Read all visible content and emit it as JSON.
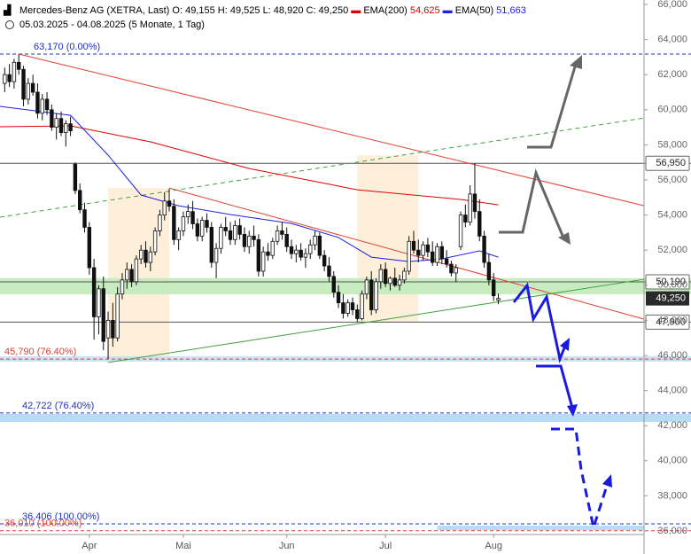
{
  "header": {
    "title": "Mercedes-Benz AG (XETRA, Last)",
    "open": "O: 49,155",
    "high": "H: 49,525",
    "low": "L: 48,920",
    "close": "C: 49,250",
    "ema200_name": "EMA(200)",
    "ema200_value": "54,625",
    "ema50_name": "EMA(50)",
    "ema50_value": "51,663",
    "range": "05.03.2025 - 04.08.2025",
    "period": "(5 Monate, 1 Tag)"
  },
  "chart_data": {
    "type": "candlestick",
    "xlim": [
      -1,
      136
    ],
    "ylim": [
      36000,
      66000
    ],
    "xticks": [
      {
        "value": 18,
        "label": "Apr"
      },
      {
        "value": 38,
        "label": "Mai"
      },
      {
        "value": 60,
        "label": "Jun"
      },
      {
        "value": 81,
        "label": "Jul"
      },
      {
        "value": 104,
        "label": "Aug"
      }
    ],
    "yticks": [
      {
        "value": 36000,
        "label": "36,000"
      },
      {
        "value": 38000,
        "label": "38,000"
      },
      {
        "value": 40000,
        "label": "40,000"
      },
      {
        "value": 42000,
        "label": "42,000"
      },
      {
        "value": 44000,
        "label": "44,000"
      },
      {
        "value": 46000,
        "label": "46,000"
      },
      {
        "value": 48000,
        "label": "48,000"
      },
      {
        "value": 50000,
        "label": "50,000"
      },
      {
        "value": 52000,
        "label": "52,000"
      },
      {
        "value": 54000,
        "label": "54,000"
      },
      {
        "value": 56000,
        "label": "56,000"
      },
      {
        "value": 58000,
        "label": "58,000"
      },
      {
        "value": 60000,
        "label": "60,000"
      },
      {
        "value": 62000,
        "label": "62,000"
      },
      {
        "value": 64000,
        "label": "64,000"
      },
      {
        "value": 66000,
        "label": "66,000"
      }
    ],
    "candles": [
      [
        61500,
        62400,
        61000,
        62000
      ],
      [
        62000,
        62600,
        61300,
        61600
      ],
      [
        61600,
        62900,
        61200,
        62700
      ],
      [
        62700,
        63170,
        62000,
        62300
      ],
      [
        62300,
        62500,
        60200,
        60600
      ],
      [
        60600,
        61800,
        60300,
        61500
      ],
      [
        61500,
        62000,
        60800,
        61000
      ],
      [
        61000,
        61500,
        59500,
        59800
      ],
      [
        59800,
        60900,
        59400,
        60600
      ],
      [
        60600,
        61000,
        59700,
        60000
      ],
      [
        60000,
        60300,
        58800,
        59000
      ],
      [
        59000,
        59800,
        58300,
        59500
      ],
      [
        59500,
        59900,
        58500,
        58700
      ],
      [
        58700,
        59400,
        57900,
        59200
      ],
      [
        59200,
        59600,
        58500,
        58800
      ],
      [
        56900,
        57000,
        55200,
        55400
      ],
      [
        55400,
        55800,
        54100,
        54300
      ],
      [
        54300,
        54700,
        53000,
        53300
      ],
      [
        53300,
        53600,
        50600,
        51000
      ],
      [
        51000,
        51500,
        46900,
        48200
      ],
      [
        48200,
        50000,
        47200,
        49800
      ],
      [
        49800,
        50500,
        46300,
        46800
      ],
      [
        47000,
        48500,
        45790,
        48000
      ],
      [
        48000,
        49000,
        46500,
        47000
      ],
      [
        47000,
        49900,
        46800,
        49500
      ],
      [
        49500,
        50700,
        49200,
        50300
      ],
      [
        50300,
        51300,
        49800,
        50900
      ],
      [
        50900,
        51200,
        49900,
        50200
      ],
      [
        50200,
        51700,
        50000,
        51500
      ],
      [
        51500,
        52300,
        51200,
        52000
      ],
      [
        52000,
        52500,
        51000,
        51300
      ],
      [
        51300,
        52200,
        50800,
        51900
      ],
      [
        51900,
        53300,
        51700,
        53100
      ],
      [
        53100,
        54300,
        52800,
        54000
      ],
      [
        54000,
        55300,
        53700,
        54800
      ],
      [
        54800,
        55500,
        54200,
        54500
      ],
      [
        54500,
        54900,
        52300,
        52600
      ],
      [
        52600,
        53300,
        52000,
        53100
      ],
      [
        53100,
        54200,
        52800,
        53900
      ],
      [
        53900,
        54600,
        53500,
        54200
      ],
      [
        54200,
        54800,
        53200,
        53500
      ],
      [
        53500,
        53800,
        52500,
        52800
      ],
      [
        52800,
        53900,
        52500,
        53700
      ],
      [
        53700,
        54100,
        53000,
        53300
      ],
      [
        53300,
        53600,
        51000,
        51300
      ],
      [
        51300,
        52400,
        50400,
        52100
      ],
      [
        52100,
        53500,
        51800,
        53300
      ],
      [
        53300,
        53900,
        52800,
        53100
      ],
      [
        53100,
        53600,
        52300,
        52600
      ],
      [
        52600,
        53700,
        52300,
        53400
      ],
      [
        53400,
        53800,
        52600,
        52900
      ],
      [
        52900,
        53300,
        51900,
        52200
      ],
      [
        52200,
        53100,
        51800,
        52800
      ],
      [
        52800,
        53400,
        52200,
        52600
      ],
      [
        52600,
        52900,
        50500,
        50800
      ],
      [
        50800,
        52200,
        50500,
        51900
      ],
      [
        51900,
        52400,
        51400,
        51700
      ],
      [
        51700,
        52700,
        51500,
        52500
      ],
      [
        52500,
        53400,
        52300,
        53100
      ],
      [
        53100,
        53600,
        52600,
        52900
      ],
      [
        52900,
        53300,
        51900,
        52200
      ],
      [
        52200,
        52600,
        51500,
        51800
      ],
      [
        51800,
        52300,
        51300,
        52000
      ],
      [
        52000,
        52400,
        51400,
        51600
      ],
      [
        51600,
        52100,
        51000,
        51800
      ],
      [
        51800,
        52600,
        51500,
        52300
      ],
      [
        52300,
        53100,
        52000,
        52800
      ],
      [
        52800,
        53000,
        51500,
        51700
      ],
      [
        51700,
        52000,
        50800,
        51100
      ],
      [
        51100,
        51600,
        50200,
        50500
      ],
      [
        50500,
        50800,
        49300,
        49600
      ],
      [
        49600,
        50000,
        48700,
        49000
      ],
      [
        49000,
        49500,
        48100,
        48400
      ],
      [
        48400,
        49200,
        48200,
        49000
      ],
      [
        49000,
        49300,
        48300,
        48600
      ],
      [
        48600,
        48900,
        47900,
        48100
      ],
      [
        48100,
        49700,
        48000,
        49500
      ],
      [
        49500,
        50500,
        49200,
        50300
      ],
      [
        50300,
        50800,
        48300,
        48600
      ],
      [
        48600,
        50400,
        48400,
        50200
      ],
      [
        50200,
        51200,
        49800,
        50900
      ],
      [
        50900,
        51300,
        49900,
        50100
      ],
      [
        50100,
        50500,
        49700,
        50400
      ],
      [
        50400,
        51000,
        49900,
        50000
      ],
      [
        50000,
        50600,
        49700,
        50300
      ],
      [
        50300,
        51000,
        50100,
        50800
      ],
      [
        50800,
        52800,
        50600,
        52500
      ],
      [
        52500,
        53100,
        51800,
        52000
      ],
      [
        52000,
        52600,
        51300,
        51700
      ],
      [
        51700,
        52500,
        51400,
        52300
      ],
      [
        52300,
        52700,
        51600,
        51900
      ],
      [
        51900,
        52500,
        51100,
        51300
      ],
      [
        51300,
        52400,
        51100,
        52200
      ],
      [
        52200,
        52500,
        51200,
        51500
      ],
      [
        51500,
        52000,
        51000,
        51200
      ],
      [
        51200,
        51400,
        50500,
        50700
      ],
      [
        50700,
        51200,
        50200,
        51000
      ],
      [
        52200,
        54200,
        52000,
        54000
      ],
      [
        54000,
        54600,
        53300,
        53600
      ],
      [
        53600,
        55700,
        53400,
        55200
      ],
      [
        55200,
        56950,
        53800,
        54200
      ],
      [
        54200,
        54900,
        52500,
        52800
      ],
      [
        52800,
        53100,
        51000,
        51300
      ],
      [
        51300,
        51800,
        50000,
        50300
      ],
      [
        50300,
        50700,
        49100,
        49400
      ],
      [
        49155,
        49525,
        48920,
        49250
      ]
    ],
    "series": [
      {
        "name": "EMA(200)",
        "color": "#e00000",
        "x": [
          -1,
          14,
          31,
          52,
          75,
          97,
          105
        ],
        "values": [
          59030,
          59080,
          58170,
          56650,
          55440,
          54890,
          54580
        ]
      },
      {
        "name": "EMA(50)",
        "color": "#2020e0",
        "x": [
          -1,
          14,
          22,
          29,
          37,
          48,
          61,
          71,
          78,
          86,
          93,
          101,
          105
        ],
        "values": [
          60190,
          59680,
          57410,
          55140,
          54530,
          54030,
          53520,
          52720,
          51600,
          51350,
          51500,
          51960,
          51600
        ]
      }
    ],
    "trendlines": [
      {
        "x": [
          3,
          136
        ],
        "values": [
          63170,
          54530
        ],
        "color": "#e04030",
        "dash": false
      },
      {
        "x": [
          35,
          136
        ],
        "values": [
          55540,
          48070
        ],
        "color": "#e04030",
        "dash": false
      },
      {
        "x": [
          -1,
          136
        ],
        "values": [
          53880,
          59530
        ],
        "color": "#40a040",
        "dash": true
      },
      {
        "x": [
          22,
          136
        ],
        "values": [
          45600,
          50340
        ],
        "color": "#40a040",
        "dash": false
      }
    ],
    "boxes": [
      {
        "x": [
          22,
          35
        ],
        "values": [
          45790,
          55540
        ],
        "color": "#fdebd0"
      },
      {
        "x": [
          75,
          88
        ],
        "values": [
          47900,
          57400
        ],
        "color": "#fdebd0"
      }
    ],
    "bands": [
      {
        "values": [
          49480,
          50400
        ],
        "color": "#c8ebc0"
      },
      {
        "values": [
          45650,
          45950
        ],
        "color": "#c6e2f5"
      },
      {
        "values": [
          42210,
          42666
        ],
        "color": "#b8dcf4"
      },
      {
        "values": [
          36050,
          36300
        ],
        "color": "#b8dcf4",
        "x": [
          92,
          136
        ]
      }
    ],
    "levels": [
      {
        "value": 63170,
        "label": "63,170 (0.00%)",
        "color": "#2030c0",
        "dash": true,
        "side": "left"
      },
      {
        "value": 56950,
        "label": "56,950",
        "color": "#555555",
        "dash": false,
        "side": "right"
      },
      {
        "value": 50190,
        "label": "50,190",
        "color": "#555555",
        "dash": false,
        "side": "right"
      },
      {
        "value": 47900,
        "label": "47,900",
        "color": "#555555",
        "dash": false,
        "side": "right"
      },
      {
        "value": 45790,
        "label": "45,790 (76.40%)",
        "color": "#e04030",
        "dash": true,
        "side": "left"
      },
      {
        "value": 42722,
        "label": "42,722 (76.40%)",
        "color": "#2030c0",
        "dash": true,
        "side": "left"
      },
      {
        "value": 36406,
        "label": "36,406 (100.00%)",
        "color": "#2030c0",
        "dash": true,
        "side": "left"
      },
      {
        "value": 36010,
        "label": "36,010 (100.00%)",
        "color": "#e04030",
        "dash": true,
        "side": "left"
      }
    ],
    "last": {
      "value": 49250,
      "label": "49,250"
    }
  }
}
